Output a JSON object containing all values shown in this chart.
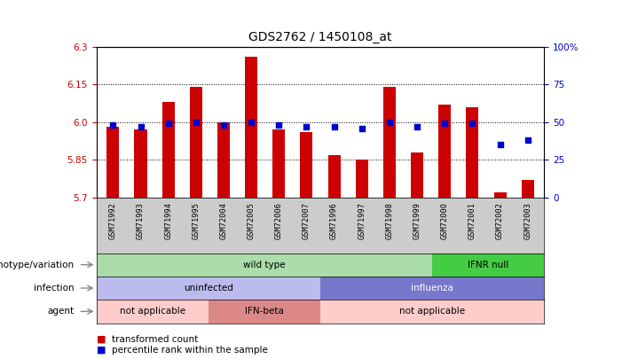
{
  "title": "GDS2762 / 1450108_at",
  "samples": [
    "GSM71992",
    "GSM71993",
    "GSM71994",
    "GSM71995",
    "GSM72004",
    "GSM72005",
    "GSM72006",
    "GSM72007",
    "GSM71996",
    "GSM71997",
    "GSM71998",
    "GSM71999",
    "GSM72000",
    "GSM72001",
    "GSM72002",
    "GSM72003"
  ],
  "bar_values": [
    5.98,
    5.97,
    6.08,
    6.14,
    6.0,
    6.26,
    5.97,
    5.96,
    5.87,
    5.85,
    6.14,
    5.88,
    6.07,
    6.06,
    5.72,
    5.77
  ],
  "dot_values": [
    48,
    47,
    49,
    50,
    48,
    50,
    48,
    47,
    47,
    46,
    50,
    47,
    49,
    49,
    35,
    38
  ],
  "ylim": [
    5.7,
    6.3
  ],
  "yticks_left": [
    5.7,
    5.85,
    6.0,
    6.15,
    6.3
  ],
  "yticks_right": [
    0,
    25,
    50,
    75,
    100
  ],
  "bar_color": "#cc0000",
  "dot_color": "#0000cc",
  "plot_bg": "#ffffff",
  "genotype_wild_color": "#aaddaa",
  "genotype_ifnr_color": "#44cc44",
  "infection_uninf_color": "#bbbbee",
  "infection_flu_color": "#7777cc",
  "agent_notapp_color": "#ffcccc",
  "agent_ifnbeta_color": "#dd8888",
  "row_labels": [
    "genotype/variation",
    "infection",
    "agent"
  ],
  "legend_bar": "transformed count",
  "legend_dot": "percentile rank within the sample"
}
